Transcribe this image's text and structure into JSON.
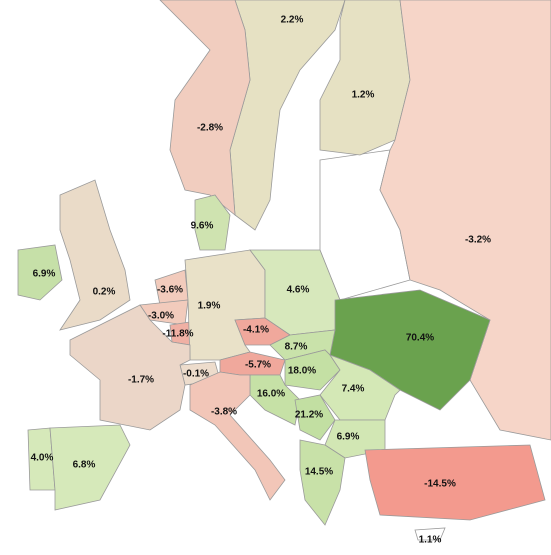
{
  "map": {
    "regions": [
      {
        "label": "2.2%",
        "color": "#e6e1c3"
      },
      {
        "label": "1.2%",
        "color": "#e6e1c3"
      },
      {
        "label": "-2.8%",
        "color": "#f1cdbf"
      },
      {
        "label": "-3.2%",
        "color": "#f6d5c8"
      },
      {
        "label": "9.6%",
        "color": "#cfe3b0"
      },
      {
        "label": "6.9%",
        "color": "#c6e0a8"
      },
      {
        "label": "0.2%",
        "color": "#eadbc8"
      },
      {
        "label": "-3.6%",
        "color": "#f2cbbc"
      },
      {
        "label": "-3.0%",
        "color": "#f2cbbc"
      },
      {
        "label": "-11.8%",
        "color": "#f0b0a4"
      },
      {
        "label": "1.9%",
        "color": "#e9e1c8"
      },
      {
        "label": "4.6%",
        "color": "#d7e8bc"
      },
      {
        "label": "70.4%",
        "color": "#6aa24e"
      },
      {
        "label": "-4.1%",
        "color": "#f0a89c"
      },
      {
        "label": "8.7%",
        "color": "#c9e2aa"
      },
      {
        "label": "-5.7%",
        "color": "#f0a89c"
      },
      {
        "label": "-0.1%",
        "color": "#eddccc"
      },
      {
        "label": "-1.7%",
        "color": "#ebd6c8"
      },
      {
        "label": "18.0%",
        "color": "#c4e0a4"
      },
      {
        "label": "7.4%",
        "color": "#d4e8b6"
      },
      {
        "label": "16.0%",
        "color": "#c6e1a6"
      },
      {
        "label": "-3.8%",
        "color": "#f2c6b8"
      },
      {
        "label": "21.2%",
        "color": "#c2dfa2"
      },
      {
        "label": "6.9%",
        "color": "#d2e7b4"
      },
      {
        "label": "4.0%",
        "color": "#d6e9ba"
      },
      {
        "label": "6.8%",
        "color": "#d6e9ba"
      },
      {
        "label": "14.5%",
        "color": "#c8e1a8"
      },
      {
        "label": "-14.5%",
        "color": "#f39a8e"
      },
      {
        "label": "1.1%",
        "color": "#ffffff"
      }
    ]
  }
}
